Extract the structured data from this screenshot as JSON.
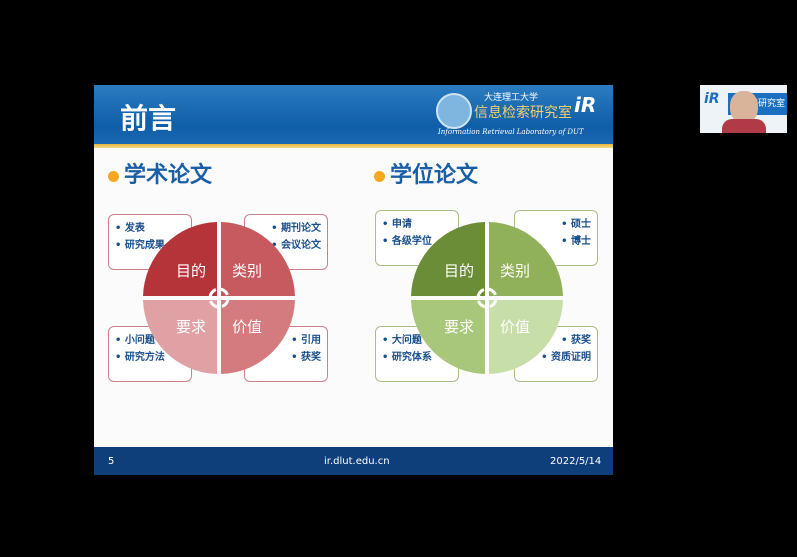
{
  "slide": {
    "title": "前言",
    "logo": {
      "university": "大连理工大学",
      "lab": "信息检索研究室",
      "english": "Information Retrieval Laboratory of DUT",
      "mark": "iR"
    },
    "left": {
      "heading": "学术论文",
      "quadrants": [
        "目的",
        "类别",
        "要求",
        "价值"
      ],
      "boxes": [
        [
          "发表",
          "研究成果"
        ],
        [
          "期刊论文",
          "会议论文"
        ],
        [
          "小问题",
          "研究方法"
        ],
        [
          "引用",
          "获奖"
        ]
      ],
      "colors": [
        "#b5343a",
        "#c75a5f",
        "#e0a1a4",
        "#d47b80"
      ],
      "border": "#c98088"
    },
    "right": {
      "heading": "学位论文",
      "quadrants": [
        "目的",
        "类别",
        "要求",
        "价值"
      ],
      "boxes": [
        [
          "申请",
          "各级学位"
        ],
        [
          "硕士",
          "博士"
        ],
        [
          "大问题",
          "研究体系"
        ],
        [
          "获奖",
          "资质证明"
        ]
      ],
      "colors": [
        "#6b8d37",
        "#90b059",
        "#a9c77b",
        "#c8dea8"
      ],
      "border": "#a9bd88"
    },
    "footer": {
      "page": "5",
      "url": "ir.dlut.edu.cn",
      "date": "2022/5/14"
    }
  },
  "webcam": {
    "banner": "索研究室",
    "mark": "iR"
  }
}
